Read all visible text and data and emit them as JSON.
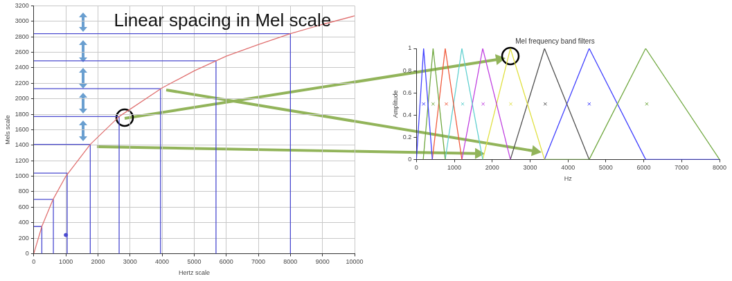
{
  "chart_data": [
    {
      "type": "line",
      "xlabel": "Hertz scale",
      "ylabel": "Mels scale",
      "annotations": [
        "Linear spacing in Mel scale"
      ],
      "xlim": [
        0,
        10000
      ],
      "xticks": [
        0,
        1000,
        2000,
        3000,
        4000,
        5000,
        6000,
        7000,
        8000,
        9000,
        10000
      ],
      "ylim": [
        0,
        3200
      ],
      "yticks": [
        0,
        200,
        400,
        600,
        800,
        1000,
        1200,
        1400,
        1600,
        1800,
        2000,
        2200,
        2400,
        2600,
        2800,
        3000,
        3200
      ],
      "grid": true,
      "legend": false,
      "marker": "none",
      "series": [
        {
          "color": "#e07070",
          "x": [
            0,
            250,
            600,
            1000,
            1760,
            2660,
            4000,
            5000,
            6000,
            7000,
            8000,
            9000,
            10000
          ],
          "values": [
            0,
            350,
            700,
            1000,
            1410,
            1770,
            2140,
            2360,
            2550,
            2700,
            2840,
            2960,
            3070
          ]
        },
        {
          "color": "#4a4ad0",
          "x": [
            0,
            250,
            250
          ],
          "values": [
            350,
            350,
            0
          ]
        },
        {
          "color": "#4a4ad0",
          "x": [
            0,
            610,
            610
          ],
          "values": [
            700,
            700,
            0
          ]
        },
        {
          "color": "#4a4ad0",
          "x": [
            0,
            1040,
            1040
          ],
          "values": [
            1040,
            1040,
            0
          ]
        },
        {
          "color": "#4a4ad0",
          "x": [
            0,
            1760,
            1760
          ],
          "values": [
            1410,
            1410,
            0
          ]
        },
        {
          "color": "#4a4ad0",
          "x": [
            0,
            2660,
            2660
          ],
          "values": [
            1770,
            1770,
            0
          ]
        },
        {
          "color": "#4a4ad0",
          "x": [
            0,
            3950,
            3950
          ],
          "values": [
            2130,
            2130,
            0
          ]
        },
        {
          "color": "#4a4ad0",
          "x": [
            0,
            5680,
            5680
          ],
          "values": [
            2490,
            2490,
            0
          ]
        },
        {
          "color": "#4a4ad0",
          "x": [
            0,
            8000,
            8000
          ],
          "values": [
            2840,
            2840,
            0
          ]
        },
        {
          "type": "scatter",
          "marker": "circle",
          "color": "#4a4ad0",
          "x": [
            1000
          ],
          "values": [
            240
          ]
        }
      ]
    },
    {
      "type": "line",
      "title": "Mel frequency band filters",
      "xlabel": "Hz",
      "ylabel": "Amplitude",
      "xlim": [
        0,
        8000
      ],
      "xticks": [
        0,
        1000,
        2000,
        3000,
        4000,
        5000,
        6000,
        7000,
        8000
      ],
      "ylim": [
        0,
        1
      ],
      "yticks": [
        0,
        0.2,
        0.4,
        0.6,
        0.8,
        1
      ],
      "grid": false,
      "legend": false,
      "marker": "none",
      "series": [
        {
          "color": "#4040ff",
          "x": [
            0,
            190,
            420
          ],
          "values": [
            0,
            1,
            0
          ]
        },
        {
          "color": "#70a840",
          "x": [
            180,
            440,
            760
          ],
          "values": [
            0,
            1,
            0
          ]
        },
        {
          "color": "#f05a3c",
          "x": [
            420,
            760,
            1200
          ],
          "values": [
            0,
            1,
            0
          ]
        },
        {
          "color": "#60d0d0",
          "x": [
            760,
            1200,
            1750
          ],
          "values": [
            0,
            1,
            0
          ]
        },
        {
          "color": "#c040e0",
          "x": [
            1200,
            1750,
            2480
          ],
          "values": [
            0,
            1,
            0
          ]
        },
        {
          "color": "#e0e040",
          "x": [
            1750,
            2480,
            3380
          ],
          "values": [
            0,
            1,
            0
          ]
        },
        {
          "color": "#505050",
          "x": [
            2480,
            3380,
            4560
          ],
          "values": [
            0,
            1,
            0
          ]
        },
        {
          "color": "#70a840",
          "x": [
            3380,
            4560,
            6050,
            8000
          ],
          "values": [
            0,
            0,
            1,
            0
          ]
        },
        {
          "color": "#4040ff",
          "x": [
            3380,
            4560,
            6050,
            8000
          ],
          "values": [
            0,
            1,
            0,
            0
          ]
        },
        {
          "type": "scatter",
          "marker": "cross",
          "colors": [
            "#4040ff",
            "#70a840",
            "#f05a3c",
            "#60d0d0",
            "#c040e0",
            "#e0e040",
            "#505050",
            "#4040ff",
            "#70a840"
          ],
          "x": [
            190,
            440,
            790,
            1220,
            1760,
            2490,
            3400,
            4560,
            6080
          ],
          "values": [
            0.5,
            0.5,
            0.5,
            0.5,
            0.5,
            0.5,
            0.5,
            0.5,
            0.5
          ]
        }
      ]
    }
  ]
}
